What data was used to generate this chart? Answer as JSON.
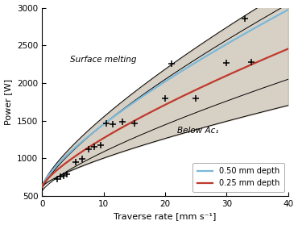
{
  "xlabel": "Traverse rate [mm s⁻¹]",
  "ylabel": "Power [W]",
  "xlim": [
    0,
    40
  ],
  "ylim": [
    500,
    3000
  ],
  "xticks": [
    0,
    10,
    20,
    30,
    40
  ],
  "yticks": [
    500,
    1000,
    1500,
    2000,
    2500,
    3000
  ],
  "surface_melting_label": "Surface melting",
  "below_ac1_label": "Below Ac₁",
  "legend_blue": "0.50 mm depth",
  "legend_red": "0.25 mm depth",
  "blue_line_color": "#7ab8d9",
  "red_line_color": "#c0392b",
  "shaded_color": "#a89880",
  "shaded_alpha": 0.45,
  "cross_points": [
    [
      2.5,
      730
    ],
    [
      3.0,
      760
    ],
    [
      3.5,
      770
    ],
    [
      4.0,
      790
    ],
    [
      5.5,
      950
    ],
    [
      6.5,
      990
    ],
    [
      7.5,
      1120
    ],
    [
      8.5,
      1150
    ],
    [
      9.5,
      1180
    ],
    [
      10.5,
      1460
    ],
    [
      11.5,
      1450
    ],
    [
      13.0,
      1490
    ],
    [
      15.0,
      1460
    ],
    [
      20.0,
      1800
    ],
    [
      21.0,
      2260
    ],
    [
      25.0,
      1800
    ],
    [
      30.0,
      2270
    ],
    [
      33.0,
      2860
    ],
    [
      34.0,
      2280
    ]
  ],
  "blue_x0": 0,
  "blue_y0": 620,
  "blue_x1": 35,
  "blue_y1": 2750,
  "red_x0": 0,
  "red_y0": 620,
  "red_x1": 35,
  "red_y1": 2280,
  "upper_x0": 0,
  "upper_y0": 620,
  "upper_x1": 35,
  "upper_y1": 3000,
  "lower_x0": 0,
  "lower_y0": 620,
  "lower_x1": 35,
  "lower_y1": 1600,
  "outer_upper_x0": 0,
  "outer_upper_y0": 580,
  "outer_upper_x1": 40,
  "outer_upper_y1": 3050,
  "outer_lower_x0": 0,
  "outer_lower_y0": 560,
  "outer_lower_x1": 40,
  "outer_lower_y1": 2050,
  "power_exp": 0.75
}
